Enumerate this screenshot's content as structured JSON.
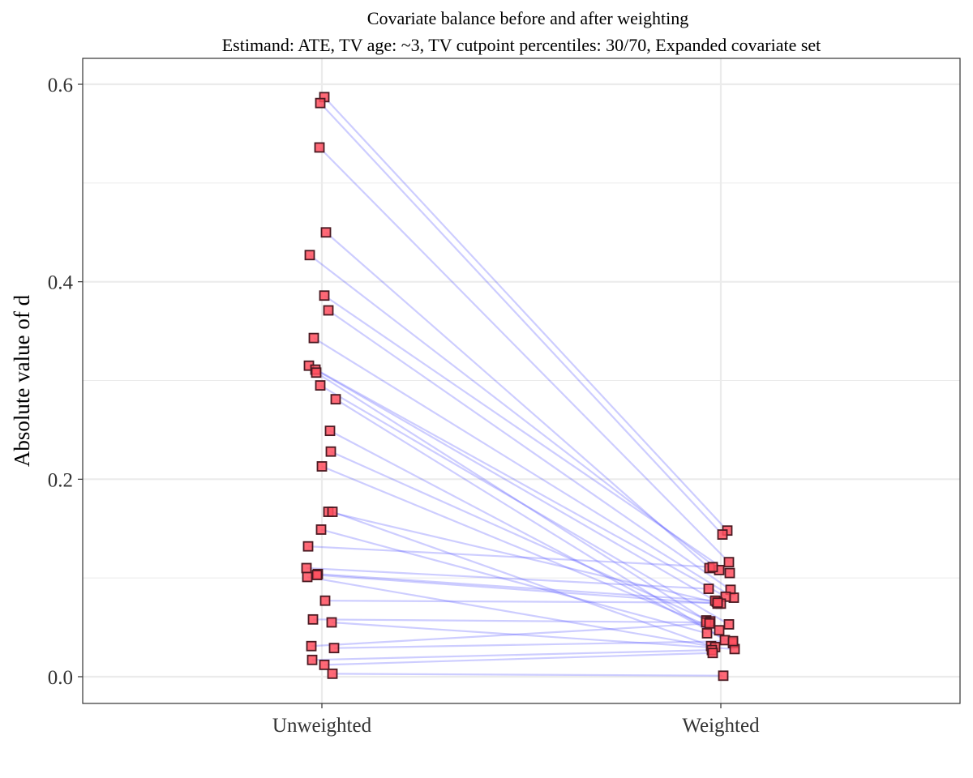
{
  "chart_data": {
    "type": "scatter",
    "title": "Covariate balance before and after weighting",
    "subtitle": "Estimand: ATE, TV age: ~3, TV cutpoint percentiles: 30/70, Expanded covariate set",
    "xlabel": "",
    "ylabel": "Absolute value of d",
    "categories": [
      "Unweighted",
      "Weighted"
    ],
    "ylim": [
      -0.028,
      0.61
    ],
    "y_ticks": [
      0.0,
      0.2,
      0.4,
      0.6
    ],
    "y_tick_labels": [
      "0.0",
      "0.2",
      "0.4",
      "0.6"
    ],
    "grid": true,
    "colors": {
      "point_fill": "#ff4f5e",
      "point_stroke": "#4a1a22",
      "line": "#4a4aff",
      "grid": "#ebebeb",
      "panel_border": "#333333"
    },
    "pairs": [
      {
        "unweighted": 0.587,
        "weighted": 0.148
      },
      {
        "unweighted": 0.581,
        "weighted": 0.144
      },
      {
        "unweighted": 0.536,
        "weighted": 0.116
      },
      {
        "unweighted": 0.45,
        "weighted": 0.11
      },
      {
        "unweighted": 0.427,
        "weighted": 0.108
      },
      {
        "unweighted": 0.386,
        "weighted": 0.105
      },
      {
        "unweighted": 0.371,
        "weighted": 0.088
      },
      {
        "unweighted": 0.343,
        "weighted": 0.08
      },
      {
        "unweighted": 0.315,
        "weighted": 0.081
      },
      {
        "unweighted": 0.311,
        "weighted": 0.076
      },
      {
        "unweighted": 0.308,
        "weighted": 0.057
      },
      {
        "unweighted": 0.295,
        "weighted": 0.053
      },
      {
        "unweighted": 0.281,
        "weighted": 0.037
      },
      {
        "unweighted": 0.249,
        "weighted": 0.034
      },
      {
        "unweighted": 0.228,
        "weighted": 0.056
      },
      {
        "unweighted": 0.213,
        "weighted": 0.047
      },
      {
        "unweighted": 0.167,
        "weighted": 0.074
      },
      {
        "unweighted": 0.167,
        "weighted": 0.031
      },
      {
        "unweighted": 0.149,
        "weighted": 0.044
      },
      {
        "unweighted": 0.132,
        "weighted": 0.111
      },
      {
        "unweighted": 0.11,
        "weighted": 0.089
      },
      {
        "unweighted": 0.104,
        "weighted": 0.077
      },
      {
        "unweighted": 0.103,
        "weighted": 0.074
      },
      {
        "unweighted": 0.101,
        "weighted": 0.03
      },
      {
        "unweighted": 0.077,
        "weighted": 0.075
      },
      {
        "unweighted": 0.058,
        "weighted": 0.055
      },
      {
        "unweighted": 0.055,
        "weighted": 0.028
      },
      {
        "unweighted": 0.031,
        "weighted": 0.054
      },
      {
        "unweighted": 0.029,
        "weighted": 0.036
      },
      {
        "unweighted": 0.017,
        "weighted": 0.027
      },
      {
        "unweighted": 0.012,
        "weighted": 0.024
      },
      {
        "unweighted": 0.003,
        "weighted": 0.001
      }
    ]
  }
}
